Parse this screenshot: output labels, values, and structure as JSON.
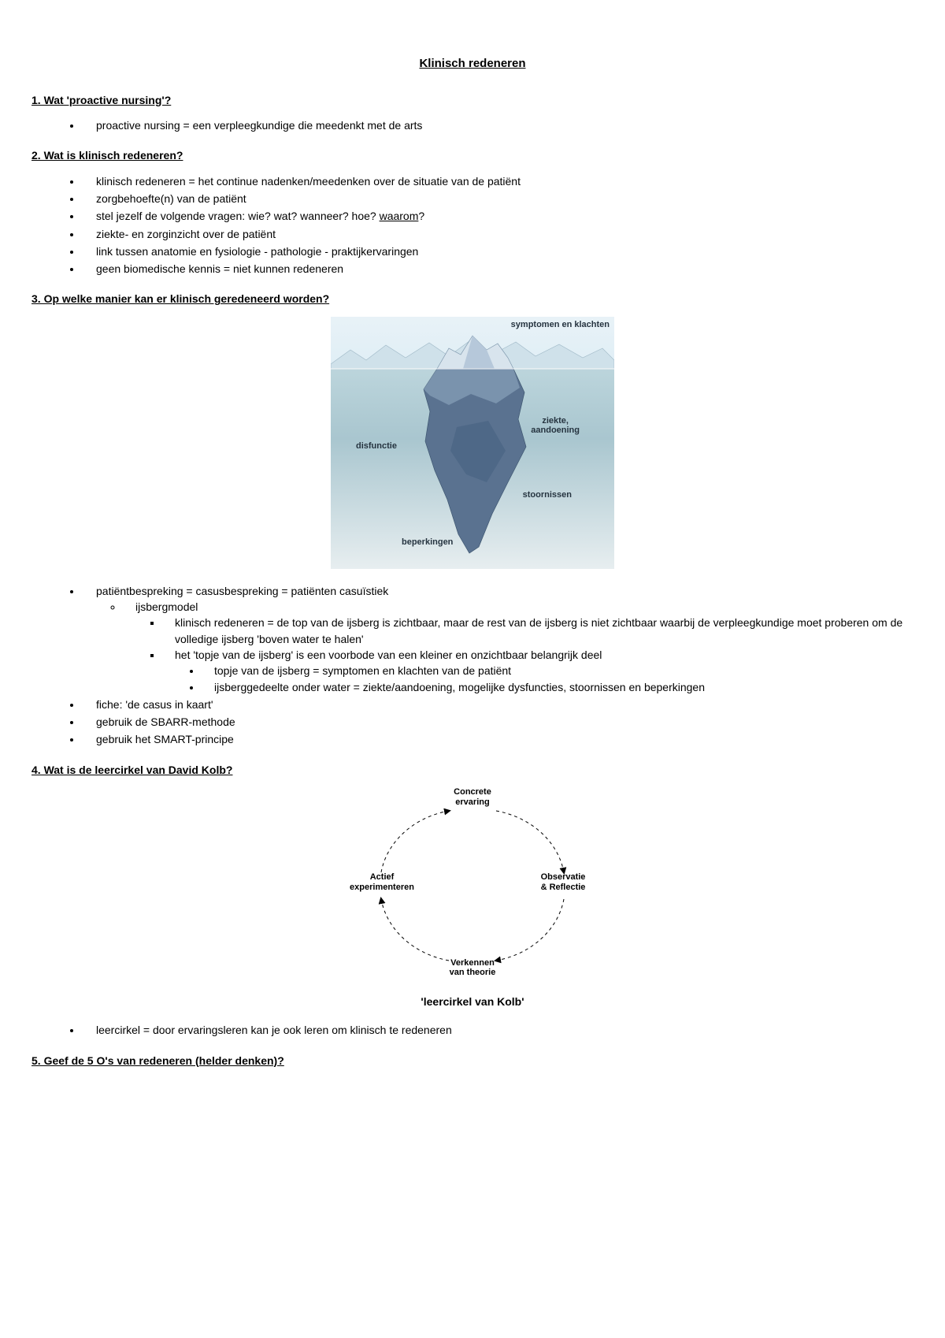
{
  "page_title": "Klinisch redeneren",
  "sections": {
    "s1": {
      "heading": "1. Wat 'proactive nursing'?",
      "items": [
        "proactive nursing = een verpleegkundige die meedenkt met de arts"
      ]
    },
    "s2": {
      "heading": "2. Wat is klinisch redeneren?",
      "items": [
        "klinisch redeneren = het continue nadenken/meedenken over de situatie van de patiënt",
        "zorgbehoefte(n) van de patiënt",
        "stel jezelf de volgende vragen: wie? wat? wanneer? hoe? ",
        "ziekte- en zorginzicht over de patiënt",
        "link tussen anatomie en fysiologie - pathologie - praktijkervaringen",
        "geen biomedische kennis = niet kunnen redeneren"
      ],
      "waarom": "waarom",
      "qmark": "?"
    },
    "s3": {
      "heading": "3. Op welke manier kan er klinisch geredeneerd worden?",
      "iceberg_labels": {
        "symptomen": "symptomen en klachten",
        "ziekte": "ziekte,\naandoening",
        "disfunctie": "disfunctie",
        "stoornissen": "stoornissen",
        "beperkingen": "beperkingen"
      },
      "item1": "patiëntbespreking = casusbespreking = patiënten casuïstiek",
      "item1_sub1": "ijsbergmodel",
      "item1_sub1_a": "klinisch redeneren = de top van de ijsberg is zichtbaar, maar de rest van de ijsberg is niet zichtbaar waarbij de verpleegkundige moet proberen om de volledige ijsberg 'boven water te halen'",
      "item1_sub1_b": "het 'topje van de ijsberg' is een voorbode van een kleiner en onzichtbaar belangrijk deel",
      "item1_sub1_b_i": "topje van de ijsberg = symptomen en klachten van de patiënt",
      "item1_sub1_b_ii": "ijsberggedeelte onder water = ziekte/aandoening, mogelijke dysfuncties, stoornissen en beperkingen",
      "item2": "fiche: 'de casus in kaart'",
      "item3": "gebruik de SBARR-methode",
      "item4": "gebruik het SMART-principe"
    },
    "s4": {
      "heading": "4. Wat is de leercirkel van David Kolb?",
      "labels": {
        "top": "Concrete\nervaring",
        "right": "Observatie\n& Reflectie",
        "bottom": "Verkennen\nvan theorie",
        "left": "Actief\nexperimenteren"
      },
      "caption": "'leercirkel van Kolb'",
      "item1": "leercirkel = door ervaringsleren kan je ook leren om klinisch te redeneren"
    },
    "s5": {
      "heading": "5. Geef de 5 O's van redeneren (helder denken)?"
    }
  },
  "iceberg_style": {
    "sky_gradient": [
      "#e8f2f7",
      "#dfeef6"
    ],
    "water_gradient": [
      "#bcd5dc",
      "#a9c6cf",
      "#e7eef0"
    ],
    "ice_fill_light": "#d8e4ed",
    "ice_fill_dark": "#5a7290",
    "label_color": "#263440",
    "label_fontsize": 11
  },
  "kolb_style": {
    "stroke": "#000000",
    "stroke_width": 1,
    "dash": "4 4",
    "label_fontsize": 11
  }
}
